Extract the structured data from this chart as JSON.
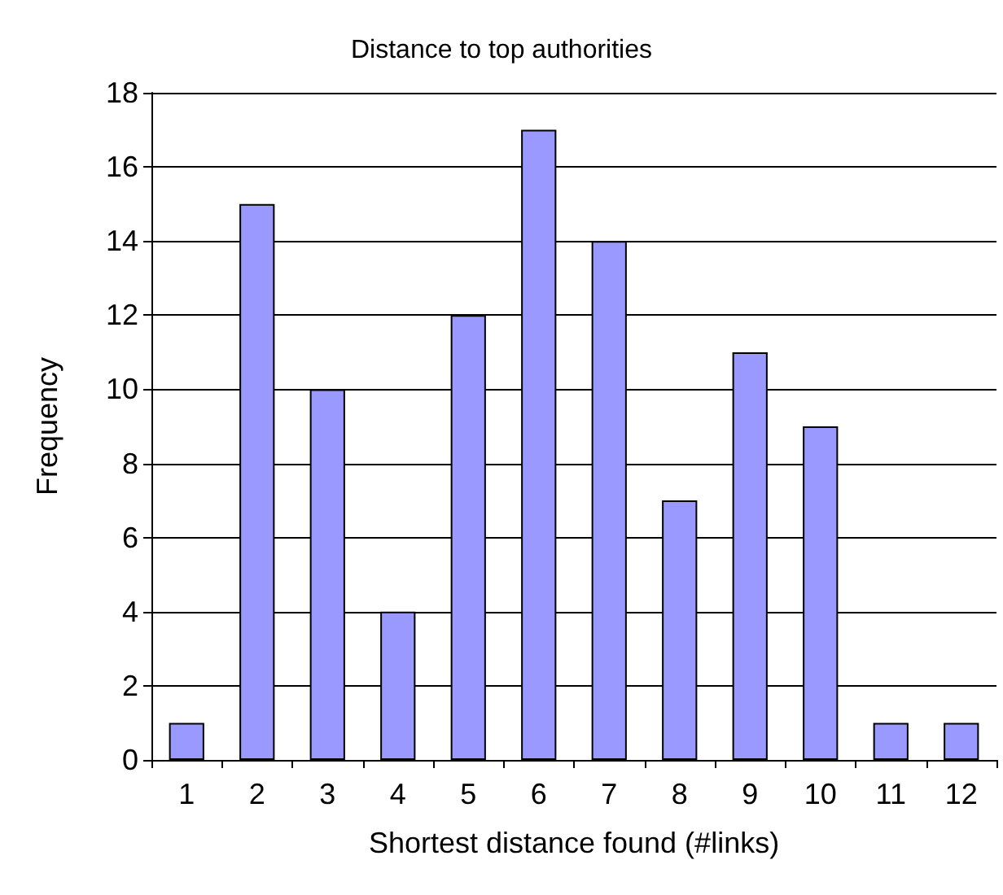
{
  "chart_data": {
    "type": "bar",
    "title": "Distance to top authorities",
    "xlabel": "Shortest distance found (#links)",
    "ylabel": "Frequency",
    "categories": [
      "1",
      "2",
      "3",
      "4",
      "5",
      "6",
      "7",
      "8",
      "9",
      "10",
      "11",
      "12"
    ],
    "values": [
      1,
      15,
      10,
      4,
      12,
      17,
      14,
      7,
      11,
      9,
      1,
      1
    ],
    "color": "#9999ff",
    "ylim": [
      0,
      18
    ],
    "yticks": [
      0,
      2,
      4,
      6,
      8,
      10,
      12,
      14,
      16,
      18
    ],
    "grid": "y"
  }
}
